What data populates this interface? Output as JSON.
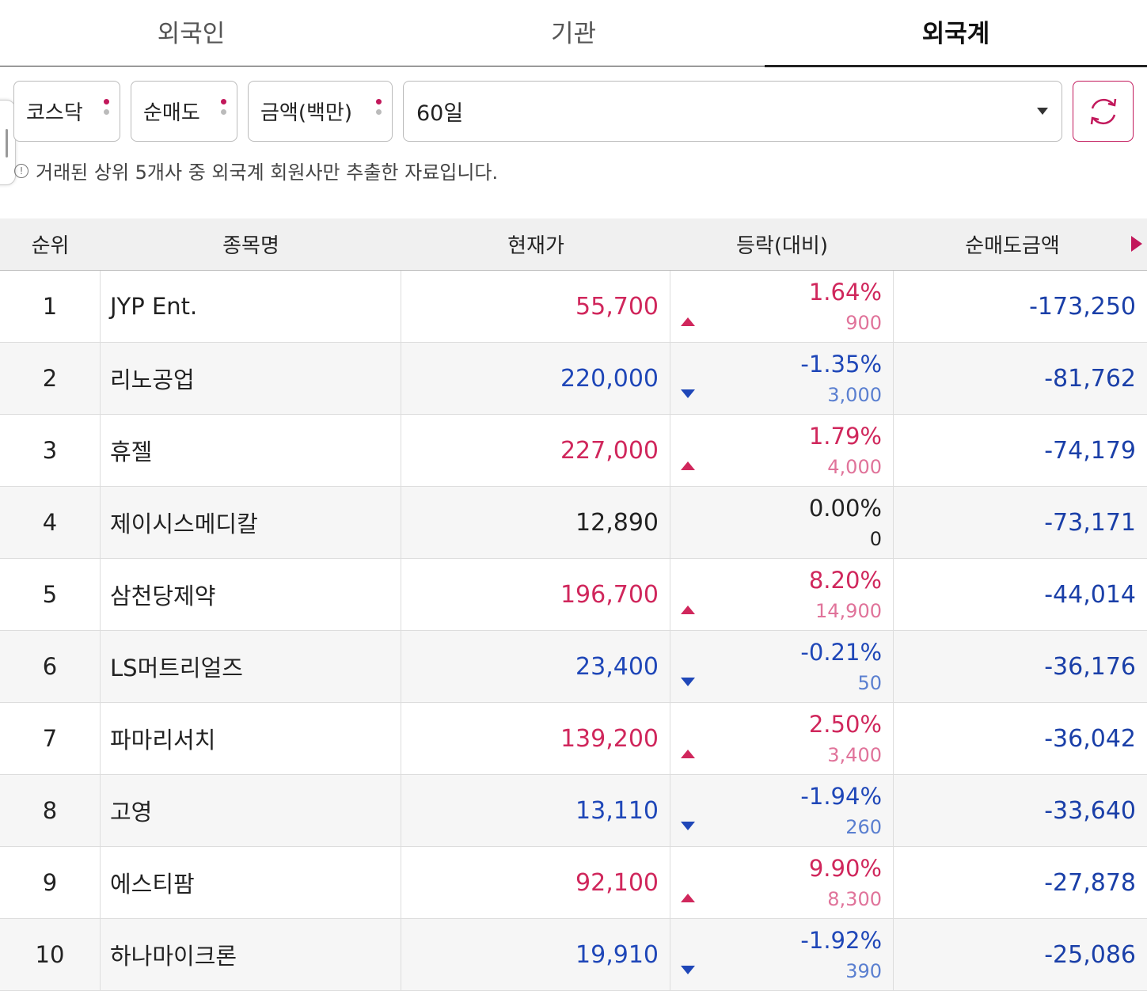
{
  "tabs": [
    {
      "label": "외국인",
      "active": false
    },
    {
      "label": "기관",
      "active": false
    },
    {
      "label": "외국계",
      "active": true
    }
  ],
  "filters": {
    "market": "코스닥",
    "trade_type": "순매도",
    "unit": "금액(백만)",
    "period": "60일"
  },
  "notice": "거래된 상위 5개사 중 외국계 회원사만 추출한 자료입니다.",
  "table": {
    "headers": {
      "rank": "순위",
      "name": "종목명",
      "price": "현재가",
      "change": "등락(대비)",
      "net": "순매도금액"
    },
    "rows": [
      {
        "rank": "1",
        "name": "JYP Ent.",
        "price": "55,700",
        "pct": "1.64%",
        "diff": "900",
        "net": "-173,250",
        "dir": "up"
      },
      {
        "rank": "2",
        "name": "리노공업",
        "price": "220,000",
        "pct": "-1.35%",
        "diff": "3,000",
        "net": "-81,762",
        "dir": "down"
      },
      {
        "rank": "3",
        "name": "휴젤",
        "price": "227,000",
        "pct": "1.79%",
        "diff": "4,000",
        "net": "-74,179",
        "dir": "up"
      },
      {
        "rank": "4",
        "name": "제이시스메디칼",
        "price": "12,890",
        "pct": "0.00%",
        "diff": "0",
        "net": "-73,171",
        "dir": "flat"
      },
      {
        "rank": "5",
        "name": "삼천당제약",
        "price": "196,700",
        "pct": "8.20%",
        "diff": "14,900",
        "net": "-44,014",
        "dir": "up"
      },
      {
        "rank": "6",
        "name": "LS머트리얼즈",
        "price": "23,400",
        "pct": "-0.21%",
        "diff": "50",
        "net": "-36,176",
        "dir": "down"
      },
      {
        "rank": "7",
        "name": "파마리서치",
        "price": "139,200",
        "pct": "2.50%",
        "diff": "3,400",
        "net": "-36,042",
        "dir": "up"
      },
      {
        "rank": "8",
        "name": "고영",
        "price": "13,110",
        "pct": "-1.94%",
        "diff": "260",
        "net": "-33,640",
        "dir": "down"
      },
      {
        "rank": "9",
        "name": "에스티팜",
        "price": "92,100",
        "pct": "9.90%",
        "diff": "8,300",
        "net": "-27,878",
        "dir": "up"
      },
      {
        "rank": "10",
        "name": "하나마이크론",
        "price": "19,910",
        "pct": "-1.92%",
        "diff": "390",
        "net": "-25,086",
        "dir": "down"
      }
    ]
  },
  "colors": {
    "up": "#d0275c",
    "down": "#1f47b8",
    "accent": "#c2185b"
  },
  "icons": {
    "refresh": "refresh-icon",
    "info": "info-icon",
    "dropdown": "chevron-down-icon",
    "more": "triangle-right-icon"
  }
}
